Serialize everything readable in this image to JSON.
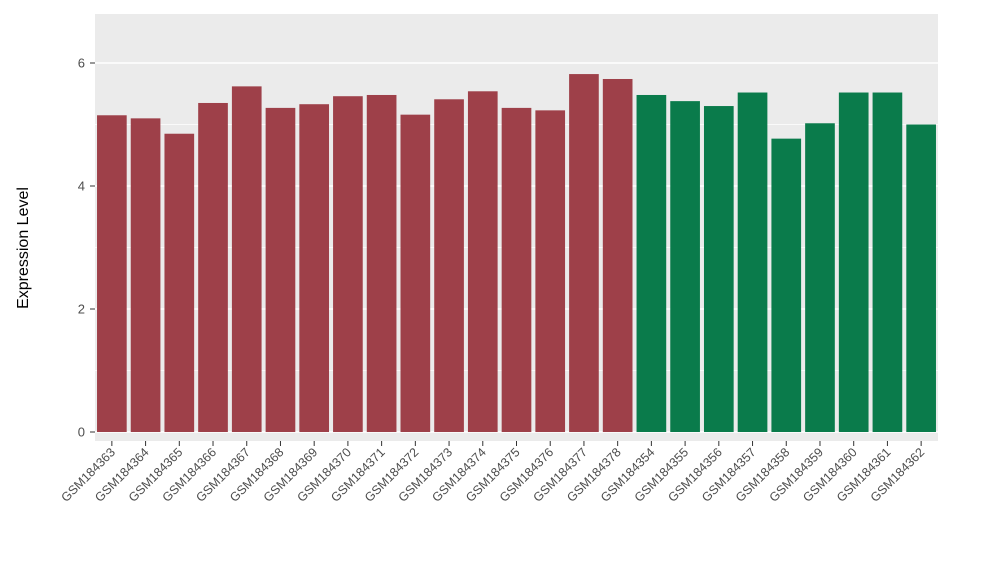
{
  "chart_data": {
    "type": "bar",
    "title": "",
    "xlabel": "",
    "ylabel": "Expression Level",
    "ylim": [
      0,
      6.8
    ],
    "yticks": [
      0,
      2,
      4,
      6
    ],
    "yticks_minor": [
      1,
      3,
      5
    ],
    "grid": "on",
    "legend": "none",
    "panel_bg": "#EBEBEB",
    "grid_color": "#FFFFFF",
    "axis_text_color": "#4D4D4D",
    "axis_title_color": "#000000",
    "tick_mark_color": "#333333",
    "categories": [
      "GSM184363",
      "GSM184364",
      "GSM184365",
      "GSM184366",
      "GSM184367",
      "GSM184368",
      "GSM184369",
      "GSM184370",
      "GSM184371",
      "GSM184372",
      "GSM184373",
      "GSM184374",
      "GSM184375",
      "GSM184376",
      "GSM184377",
      "GSM184378",
      "GSM184354",
      "GSM184355",
      "GSM184356",
      "GSM184357",
      "GSM184358",
      "GSM184359",
      "GSM184360",
      "GSM184361",
      "GSM184362"
    ],
    "values": [
      5.15,
      5.1,
      4.85,
      5.35,
      5.62,
      5.27,
      5.33,
      5.46,
      5.48,
      5.16,
      5.41,
      5.54,
      5.27,
      5.23,
      5.82,
      5.74,
      5.48,
      5.38,
      5.3,
      5.52,
      4.77,
      5.02,
      5.52,
      5.52,
      5.0
    ],
    "bar_groups": [
      "groupA",
      "groupA",
      "groupA",
      "groupA",
      "groupA",
      "groupA",
      "groupA",
      "groupA",
      "groupA",
      "groupA",
      "groupA",
      "groupA",
      "groupA",
      "groupA",
      "groupA",
      "groupA",
      "groupB",
      "groupB",
      "groupB",
      "groupB",
      "groupB",
      "groupB",
      "groupB",
      "groupB",
      "groupB"
    ],
    "group_colors": {
      "groupA": "#9E4049",
      "groupB": "#0A7B4B"
    }
  }
}
